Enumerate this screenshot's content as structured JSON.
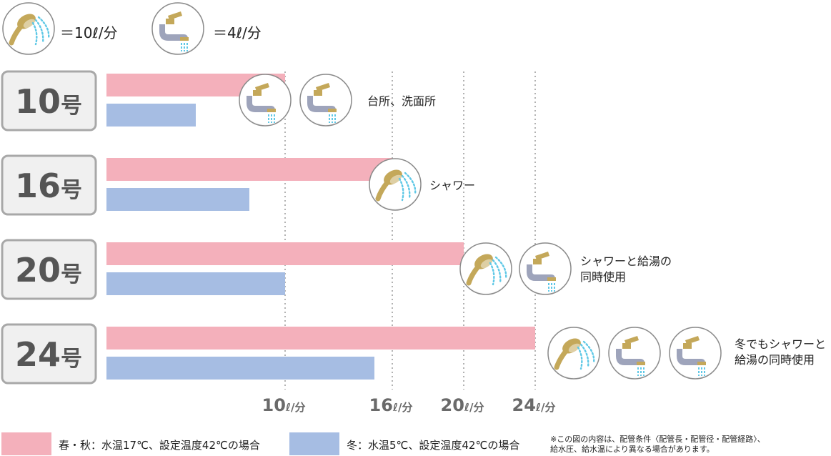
{
  "icon_key": [
    {
      "icon": "shower-head-icon",
      "label": "＝10ℓ/分"
    },
    {
      "icon": "faucet-icon",
      "label": "＝4ℓ/分"
    }
  ],
  "chart_data": {
    "type": "bar",
    "orientation": "horizontal",
    "categories": [
      "10号",
      "16号",
      "20号",
      "24号"
    ],
    "series": [
      {
        "name": "春・秋：水温17℃、設定温度42℃の場合",
        "color": "#f4b0bb",
        "values": [
          10,
          16,
          20,
          24
        ]
      },
      {
        "name": "冬：水温5℃、設定温度42℃の場合",
        "color": "#a6bde3",
        "values": [
          5,
          8,
          10,
          15
        ]
      }
    ],
    "x_ticks": [
      {
        "value": 10,
        "label": "10ℓ/分"
      },
      {
        "value": 16,
        "label": "16ℓ/分"
      },
      {
        "value": 20,
        "label": "20ℓ/分"
      },
      {
        "value": 24,
        "label": "24ℓ/分"
      }
    ],
    "grid": "dotted-vertical",
    "legend": "bottom",
    "usage": [
      {
        "icons": [
          "faucet-icon",
          "faucet-icon"
        ],
        "label": "台所、洗面所"
      },
      {
        "icons": [
          "shower-head-icon"
        ],
        "label": "シャワー"
      },
      {
        "icons": [
          "shower-head-icon",
          "faucet-icon"
        ],
        "label": "シャワーと給湯の\n同時使用"
      },
      {
        "icons": [
          "shower-head-icon",
          "faucet-icon",
          "faucet-icon"
        ],
        "label": "冬でもシャワーと\n給湯の同時使用"
      }
    ]
  },
  "note": "※この図の内容は、配管条件〈配管長・配管径・配管経路〉、\n給水圧、給水温により異なる場合があります。",
  "colors": {
    "pink": "#f4b0bb",
    "blue": "#a6bde3",
    "gold": "#c4a85a",
    "pipe": "#9ea4bb",
    "water": "#5fc8e6",
    "box_border": "#a8a8a8",
    "box_fill": "#f0f0f0"
  }
}
